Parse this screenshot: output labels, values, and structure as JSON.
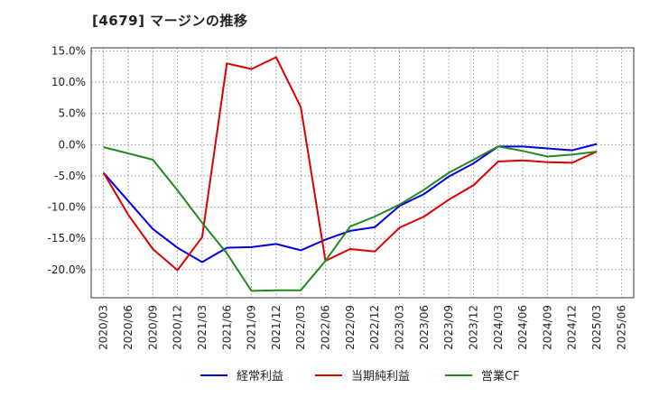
{
  "title": "[4679]  マージンの推移",
  "chart_data": {
    "type": "line",
    "title": "[4679]  マージンの推移",
    "x": [
      "2020/03",
      "2020/06",
      "2020/09",
      "2020/12",
      "2021/03",
      "2021/06",
      "2021/09",
      "2021/12",
      "2022/03",
      "2022/06",
      "2022/09",
      "2022/12",
      "2023/03",
      "2023/06",
      "2023/09",
      "2023/12",
      "2024/03",
      "2024/06",
      "2024/09",
      "2024/12",
      "2025/03",
      "2025/06"
    ],
    "ylim": [
      -24.5,
      15.5
    ],
    "yticks": [
      15,
      10,
      5,
      0,
      -5,
      -10,
      -15,
      -20
    ],
    "ytick_labels": [
      "15.0%",
      "10.0%",
      "5.0%",
      "0.0%",
      "-5.0%",
      "-10.0%",
      "-15.0%",
      "-20.0%"
    ],
    "grid": true,
    "legend_position": "bottom",
    "series": [
      {
        "name": "経常利益",
        "color": "#0000dd",
        "values": [
          -4.5,
          -9.0,
          -13.5,
          -16.5,
          -18.8,
          -16.5,
          -16.4,
          -15.9,
          -16.9,
          -15.2,
          -13.8,
          -13.2,
          -9.8,
          -7.9,
          -5.1,
          -3.0,
          -0.3,
          -0.3,
          -0.6,
          -0.9,
          0.1,
          null
        ]
      },
      {
        "name": "当期純利益",
        "color": "#dd0000",
        "values": [
          -4.5,
          -11.2,
          -16.7,
          -20.1,
          -14.8,
          13.0,
          12.1,
          14.0,
          6.0,
          -18.6,
          -16.7,
          -17.1,
          -13.3,
          -11.5,
          -8.8,
          -6.5,
          -2.7,
          -2.5,
          -2.8,
          -2.9,
          -1.1,
          null
        ]
      },
      {
        "name": "営業CF",
        "color": "#228822",
        "values": [
          -0.4,
          -1.4,
          -2.4,
          -7.3,
          -12.5,
          -17.4,
          -23.4,
          -23.3,
          -23.3,
          -18.6,
          -13.1,
          -11.5,
          -9.6,
          -7.2,
          -4.5,
          -2.4,
          -0.3,
          -1.0,
          -1.9,
          -1.6,
          -1.1,
          null
        ]
      }
    ]
  }
}
